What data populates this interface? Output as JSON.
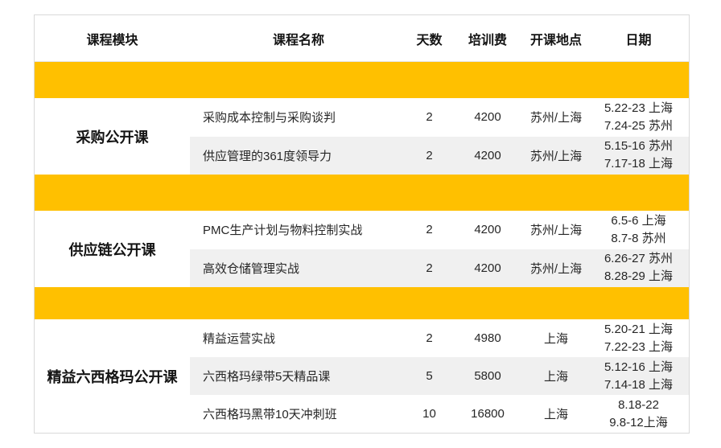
{
  "colors": {
    "accent_gold": "#FFC000",
    "row_alt_bg": "#F0F0F0",
    "table_border": "#D9D9D9",
    "text": "#262626"
  },
  "table": {
    "headers": {
      "module": "课程模块",
      "name": "课程名称",
      "days": "天数",
      "fee": "培训费",
      "location": "开课地点",
      "date": "日期"
    },
    "sections": [
      {
        "module": "采购公开课",
        "courses": [
          {
            "name": "采购成本控制与采购谈判",
            "days": "2",
            "fee": "4200",
            "location": "苏州/上海",
            "dates": [
              "5.22-23 上海",
              "7.24-25 苏州"
            ]
          },
          {
            "name": "供应管理的361度领导力",
            "days": "2",
            "fee": "4200",
            "location": "苏州/上海",
            "dates": [
              "5.15-16 苏州",
              "7.17-18 上海"
            ]
          }
        ]
      },
      {
        "module": "供应链公开课",
        "courses": [
          {
            "name": "PMC生产计划与物料控制实战",
            "days": "2",
            "fee": "4200",
            "location": "苏州/上海",
            "dates": [
              "6.5-6 上海",
              "8.7-8 苏州"
            ]
          },
          {
            "name": "高效仓储管理实战",
            "days": "2",
            "fee": "4200",
            "location": "苏州/上海",
            "dates": [
              "6.26-27 苏州",
              "8.28-29 上海"
            ]
          }
        ]
      },
      {
        "module": "精益六西格玛公开课",
        "courses": [
          {
            "name": "精益运营实战",
            "days": "2",
            "fee": "4980",
            "location": "上海",
            "dates": [
              "5.20-21 上海",
              "7.22-23 上海"
            ]
          },
          {
            "name": "六西格玛绿带5天精品课",
            "days": "5",
            "fee": "5800",
            "location": "上海",
            "dates": [
              "5.12-16 上海",
              "7.14-18 上海"
            ]
          },
          {
            "name": "六西格玛黑带10天冲刺班",
            "days": "10",
            "fee": "16800",
            "location": "上海",
            "dates": [
              "8.18-22",
              "9.8-12上海"
            ]
          }
        ]
      }
    ]
  }
}
